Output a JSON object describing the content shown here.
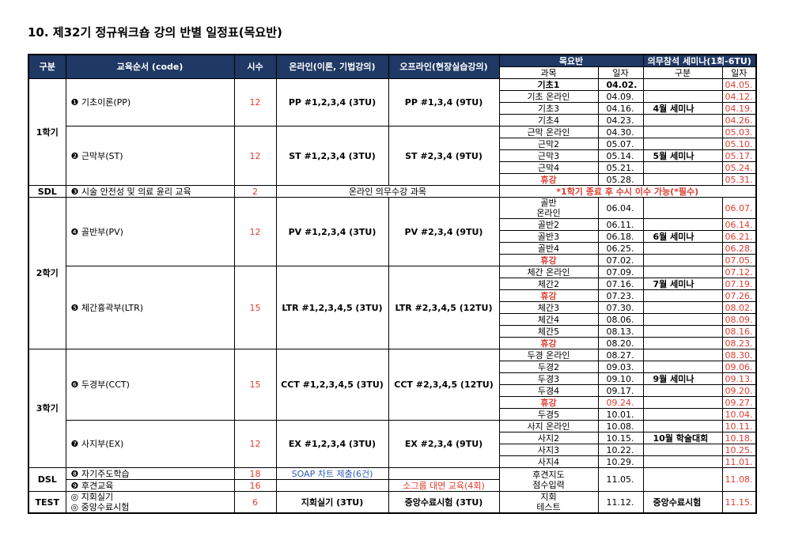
{
  "header": {
    "title": "10. 제32기 정규워크숍 강의 반별 일정표(목요반)"
  },
  "columns": {
    "group": "구분",
    "course": "교육순서 (code)",
    "hours": "시수",
    "online": "온라인(이론, 기법강의)",
    "offline": "오프라인(현장실습강의)",
    "class": "목요반",
    "seminar": "의무참석 세미나(1회-6TU)",
    "subject": "과목",
    "date": "일자",
    "seminar_name": "구분",
    "seminar_date": "일자"
  },
  "colors": {
    "header": "#1f3864",
    "hours": "#e03c31",
    "seminar_date": "#e03c31",
    "note": "#e03c31"
  },
  "groups": [
    {
      "label": "1학기",
      "modules": [
        {
          "name": "❶ 기초이론(PP)",
          "hours": 12,
          "online": "PP #1,2,3,4 (3TU)",
          "offline": "PP #1,3,4 (9TU)",
          "sessions": [
            {
              "subject": "기초1",
              "date": "04.02.",
              "seminar_date": "04.05.",
              "bold": true
            },
            {
              "subject": "기초 온라인",
              "date": "04.09.",
              "seminar_date": "04.12."
            },
            {
              "subject": "기초3",
              "date": "04.16.",
              "seminar": "4월 세미나",
              "seminar_date": "04.19."
            },
            {
              "subject": "기초4",
              "date": "04.23.",
              "seminar_date": "04.26."
            }
          ]
        },
        {
          "name": "❷ 근막부(ST)",
          "hours": 12,
          "online": "ST #1,2,3,4 (3TU)",
          "offline": "ST #2,3,4 (9TU)",
          "sessions": [
            {
              "subject": "근막 온라인",
              "date": "04.30.",
              "seminar_date": "05.03."
            },
            {
              "subject": "근막2",
              "date": "05.07.",
              "seminar_date": "05.10."
            },
            {
              "subject": "근막3",
              "date": "05.14.",
              "seminar": "5월 세미나",
              "seminar_date": "05.17."
            },
            {
              "subject": "근막4",
              "date": "05.21.",
              "seminar_date": "05.24."
            },
            {
              "subject": "휴강",
              "date": "05.28.",
              "seminar_date": "05.31.",
              "color": "#e03c31"
            }
          ]
        }
      ]
    },
    {
      "label": "SDL",
      "modules": [
        {
          "name": "❸ 시술 안전성 및 의료 윤리 교육",
          "hours": 2,
          "course": "온라인 의무수강 과목",
          "note": "*1학기 종료 후 수시 이수 가능(*필수)"
        }
      ]
    },
    {
      "label": "2학기",
      "modules": [
        {
          "name": "❹ 골반부(PV)",
          "hours": 12,
          "online": "PV #1,2,3,4 (3TU)",
          "offline": "PV #2,3,4 (9TU)",
          "sessions": [
            {
              "subject": [
                "골반",
                "온라인"
              ],
              "date": "06.04.",
              "seminar_date": "06.07."
            },
            {
              "subject": "골반2",
              "date": "06.11.",
              "seminar_date": "06.14."
            },
            {
              "subject": "골반3",
              "date": "06.18.",
              "seminar": "6월 세미나",
              "seminar_date": "06.21."
            },
            {
              "subject": "골반4",
              "date": "06.25.",
              "seminar_date": "06.28."
            },
            {
              "subject": "휴강",
              "date": "07.02.",
              "seminar_date": "07.05.",
              "color": "#e03c31"
            }
          ]
        },
        {
          "name": "❺ 체간흉곽부(LTR)",
          "hours": 15,
          "online": "LTR #1,2,3,4,5 (3TU)",
          "offline": "LTR #2,3,4,5 (12TU)",
          "sessions": [
            {
              "subject": "체간 온라인",
              "date": "07.09.",
              "seminar_date": "07.12."
            },
            {
              "subject": "체간2",
              "date": "07.16.",
              "seminar": "7월 세미나",
              "seminar_date": "07.19."
            },
            {
              "subject": "휴강",
              "date": "07.23.",
              "seminar_date": "07.26.",
              "color": "#e03c31"
            },
            {
              "subject": "체간3",
              "date": "07.30.",
              "seminar_date": "08.02."
            },
            {
              "subject": "체간4",
              "date": "08.06.",
              "seminar_date": "08.09."
            },
            {
              "subject": "체간5",
              "date": "08.13.",
              "seminar_date": "08.16."
            },
            {
              "subject": "휴강",
              "date": "08.20.",
              "seminar_date": "08.23.",
              "color": "#e03c31"
            }
          ]
        }
      ]
    },
    {
      "label": "3학기",
      "modules": [
        {
          "name": "❻ 두경부(CCT)",
          "hours": 15,
          "online": "CCT #1,2,3,4,5 (3TU)",
          "offline": "CCT #2,3,4,5 (12TU)",
          "sessions": [
            {
              "subject": "두경 온라인",
              "date": "08.27.",
              "seminar_date": "08.30."
            },
            {
              "subject": "두경2",
              "date": "09.03.",
              "seminar_date": "09.06."
            },
            {
              "subject": "두경3",
              "date": "09.10.",
              "seminar": "9월 세미나",
              "seminar_date": "09.13."
            },
            {
              "subject": "두경4",
              "date": "09.17.",
              "seminar_date": "09.20."
            },
            {
              "subject": "휴강",
              "date": "09.24.",
              "seminar_date": "09.27.",
              "color": "#e03c31",
              "date_color": "#e03c31"
            },
            {
              "subject": "두경5",
              "date": "10.01.",
              "seminar_date": "10.04."
            }
          ]
        },
        {
          "name": "❼ 사지부(EX)",
          "hours": 12,
          "online": "EX #1,2,3,4 (3TU)",
          "offline": "EX #2,3,4 (9TU)",
          "sessions": [
            {
              "subject": "사지 온라인",
              "date": "10.08.",
              "seminar_date": "10.11."
            },
            {
              "subject": "사지2",
              "date": "10.15.",
              "seminar": "10월 학술대회",
              "seminar_date": "10.18."
            },
            {
              "subject": "사지3",
              "date": "10.22.",
              "seminar_date": "10.25."
            },
            {
              "subject": "사지4",
              "date": "10.29.",
              "seminar_date": "11.01."
            }
          ]
        }
      ]
    },
    {
      "label": "DSL",
      "modules": [
        {
          "name": "❽ 자기주도학습",
          "hours": 18,
          "online": "SOAP 차트 제출(6건)",
          "color": "#2e5cb8"
        },
        {
          "name": "❾ 후견교육",
          "hours": 16,
          "offline": "소그룹 대면 교육(4회)",
          "color": "#e03c31"
        }
      ],
      "session": {
        "subject": [
          "후견지도",
          "점수입력"
        ],
        "date": "11.05.",
        "seminar_date": "11.08."
      }
    },
    {
      "label": "TEST",
      "modules": [
        {
          "name": [
            "◎ 지회실기",
            "◎ 중앙수료시험"
          ],
          "hours": 6,
          "online": "지회실기 (3TU)",
          "offline": "중앙수료시험 (3TU)"
        }
      ],
      "session": {
        "subject": [
          "지회",
          "테스트"
        ],
        "date": "11.12.",
        "seminar": "중앙수료시험",
        "seminar_date": "11.15."
      }
    }
  ]
}
